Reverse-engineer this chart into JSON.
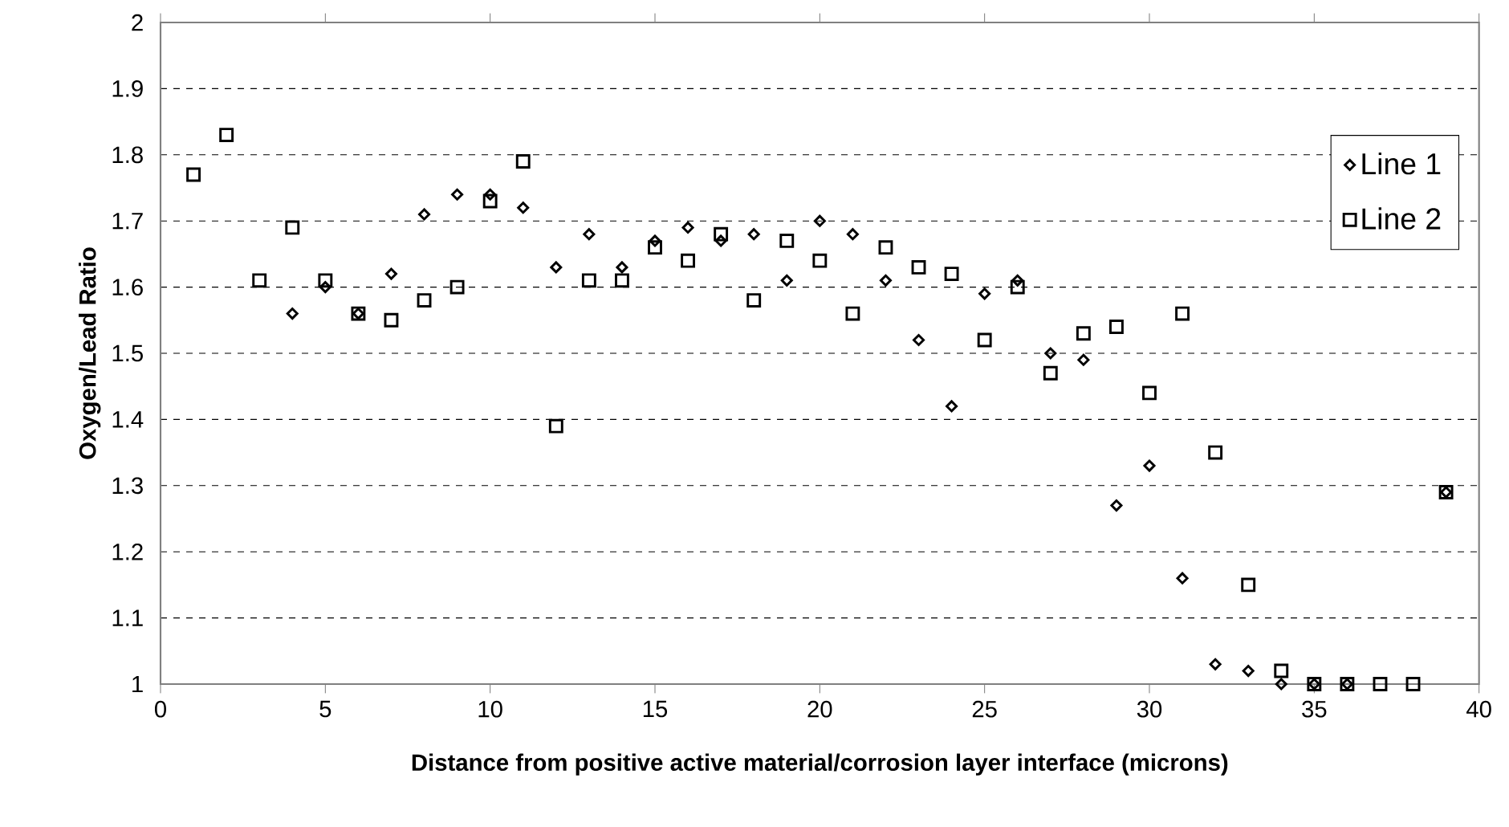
{
  "chart_data": {
    "type": "scatter",
    "xlabel": "Distance from positive active material/corrosion layer interface (microns)",
    "ylabel": "Oxygen/Lead Ratio",
    "xlim": [
      0,
      40
    ],
    "xticks": [
      0,
      5,
      10,
      15,
      20,
      25,
      30,
      35,
      40
    ],
    "ylim": [
      1,
      2
    ],
    "yticks": [
      1,
      1.1,
      1.2,
      1.3,
      1.4,
      1.5,
      1.6,
      1.7,
      1.8,
      1.9,
      2
    ],
    "grid": "y",
    "legend": "right",
    "series": [
      {
        "name": "Line 1",
        "color": "#000000",
        "marker": "diamond",
        "x": [
          4,
          5,
          6,
          7,
          8,
          9,
          10,
          11,
          12,
          13,
          14,
          15,
          16,
          17,
          18,
          19,
          20,
          21,
          22,
          23,
          24,
          25,
          26,
          27,
          28,
          29,
          30,
          31,
          32,
          33,
          34,
          35,
          36,
          39
        ],
        "values": [
          1.56,
          1.6,
          1.56,
          1.62,
          1.71,
          1.74,
          1.74,
          1.72,
          1.63,
          1.68,
          1.63,
          1.67,
          1.69,
          1.67,
          1.68,
          1.61,
          1.7,
          1.68,
          1.61,
          1.52,
          1.42,
          1.59,
          1.61,
          1.5,
          1.49,
          1.27,
          1.33,
          1.16,
          1.03,
          1.02,
          1.0,
          1.0,
          1.0,
          1.29
        ]
      },
      {
        "name": "Line 2",
        "color": "#000000",
        "marker": "square",
        "x": [
          1,
          2,
          3,
          4,
          5,
          6,
          7,
          8,
          9,
          10,
          11,
          12,
          13,
          14,
          15,
          16,
          17,
          18,
          19,
          20,
          21,
          22,
          23,
          24,
          25,
          26,
          27,
          28,
          29,
          30,
          31,
          32,
          33,
          34,
          35,
          36,
          37,
          38,
          39
        ],
        "values": [
          1.77,
          1.83,
          1.61,
          1.69,
          1.61,
          1.56,
          1.55,
          1.58,
          1.6,
          1.73,
          1.79,
          1.39,
          1.61,
          1.61,
          1.66,
          1.64,
          1.68,
          1.58,
          1.67,
          1.64,
          1.56,
          1.66,
          1.63,
          1.62,
          1.52,
          1.6,
          1.47,
          1.53,
          1.54,
          1.44,
          1.56,
          1.35,
          1.15,
          1.02,
          1.0,
          1.0,
          1.0,
          1.0,
          1.29
        ]
      }
    ]
  }
}
